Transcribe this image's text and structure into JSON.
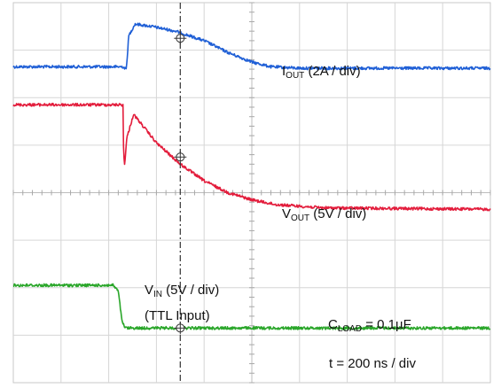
{
  "chart_data": {
    "type": "line",
    "title": "",
    "xlabel": "",
    "ylabel": "",
    "grid": true,
    "x_divisions": 10,
    "y_divisions": 8,
    "cursor_division": 3.5,
    "series": [
      {
        "name": "I_OUT",
        "color": "#1f5fd6",
        "points": [
          [
            0,
            6.65
          ],
          [
            2.3,
            6.65
          ],
          [
            2.37,
            6.6
          ],
          [
            2.42,
            7.3
          ],
          [
            2.55,
            7.55
          ],
          [
            2.9,
            7.5
          ],
          [
            3.4,
            7.4
          ],
          [
            4,
            7.2
          ],
          [
            4.5,
            6.95
          ],
          [
            5,
            6.75
          ],
          [
            5.4,
            6.65
          ],
          [
            6,
            6.62
          ],
          [
            7,
            6.62
          ],
          [
            10,
            6.62
          ]
        ]
      },
      {
        "name": "V_OUT",
        "color": "#e31d3c",
        "points": [
          [
            0,
            5.85
          ],
          [
            2.3,
            5.85
          ],
          [
            2.3,
            5.2
          ],
          [
            2.33,
            4.55
          ],
          [
            2.38,
            5.15
          ],
          [
            2.52,
            5.65
          ],
          [
            3,
            5.05
          ],
          [
            3.5,
            4.6
          ],
          [
            4,
            4.25
          ],
          [
            4.5,
            4.0
          ],
          [
            5,
            3.85
          ],
          [
            5.5,
            3.75
          ],
          [
            6.5,
            3.68
          ],
          [
            10,
            3.65
          ]
        ]
      },
      {
        "name": "V_IN",
        "color": "#2aa62a",
        "points": [
          [
            0,
            2.05
          ],
          [
            2.1,
            2.05
          ],
          [
            2.2,
            1.92
          ],
          [
            2.28,
            1.28
          ],
          [
            2.35,
            1.15
          ],
          [
            3,
            1.15
          ],
          [
            10,
            1.15
          ]
        ]
      }
    ],
    "annotations": {
      "iout": {
        "main": "I",
        "sub": "OUT",
        "rest": " (2A / div)"
      },
      "vout": {
        "main": "V",
        "sub": "OUT",
        "rest": " (5V / div)"
      },
      "vin": {
        "main": "V",
        "sub": "IN",
        "rest": " (5V / div)"
      },
      "vin_note": "(TTL Input)",
      "cload": {
        "main": "C",
        "sub": "LOAD",
        "rest": " = 0.1µF"
      },
      "timebase": "t = 200 ns / div"
    }
  }
}
